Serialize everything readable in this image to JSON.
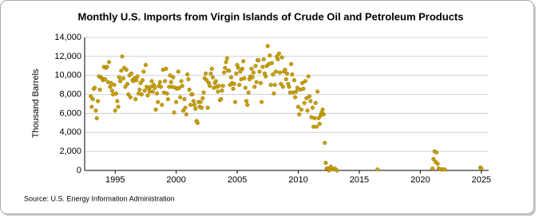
{
  "chart_data": {
    "type": "scatter",
    "title": "Monthly U.S. Imports from Virgin Islands of Crude Oil and Petroleum Products",
    "y_label": "Thousand Barrels",
    "source": "Source: U.S. Energy Information Administration",
    "color": "#c9a100",
    "grid": true,
    "xlim": [
      1992.5,
      2025.6
    ],
    "xticks": [
      1995,
      2000,
      2005,
      2010,
      2015,
      2020,
      2025
    ],
    "ylim": [
      0,
      14000
    ],
    "yticks": [
      0,
      {
        "value": 2000,
        "label": "2,000"
      },
      {
        "value": 4000,
        "label": "4,000"
      },
      {
        "value": 6000,
        "label": "6,000"
      },
      {
        "value": 8000,
        "label": "8,000"
      },
      {
        "value": 10000,
        "label": "10,000"
      },
      {
        "value": 12000,
        "label": "12,000"
      },
      {
        "value": 14000,
        "label": "14,000"
      }
    ],
    "x": [
      1993.0,
      1993.08,
      1993.17,
      1993.25,
      1993.33,
      1993.42,
      1993.5,
      1993.58,
      1993.67,
      1993.75,
      1993.83,
      1993.92,
      1994.0,
      1994.08,
      1994.17,
      1994.25,
      1994.33,
      1994.42,
      1994.5,
      1994.58,
      1994.67,
      1994.75,
      1994.83,
      1994.92,
      1995.0,
      1995.08,
      1995.17,
      1995.25,
      1995.33,
      1995.42,
      1995.5,
      1995.58,
      1995.67,
      1995.75,
      1995.83,
      1995.92,
      1996.0,
      1996.08,
      1996.17,
      1996.25,
      1996.33,
      1996.42,
      1996.5,
      1996.58,
      1996.67,
      1996.75,
      1996.83,
      1996.92,
      1997.0,
      1997.08,
      1997.17,
      1997.25,
      1997.33,
      1997.42,
      1997.5,
      1997.58,
      1997.67,
      1997.75,
      1997.83,
      1997.92,
      1998.0,
      1998.08,
      1998.17,
      1998.25,
      1998.33,
      1998.42,
      1998.5,
      1998.58,
      1998.67,
      1998.75,
      1998.83,
      1998.92,
      1999.0,
      1999.08,
      1999.17,
      1999.25,
      1999.33,
      1999.42,
      1999.5,
      1999.58,
      1999.67,
      1999.75,
      1999.83,
      1999.92,
      2000.0,
      2000.08,
      2000.17,
      2000.25,
      2000.33,
      2000.42,
      2000.5,
      2000.58,
      2000.67,
      2000.75,
      2000.83,
      2000.92,
      2001.0,
      2001.08,
      2001.17,
      2001.25,
      2001.33,
      2001.42,
      2001.5,
      2001.58,
      2001.67,
      2001.75,
      2001.83,
      2001.92,
      2002.0,
      2002.08,
      2002.17,
      2002.25,
      2002.33,
      2002.42,
      2002.5,
      2002.58,
      2002.67,
      2002.75,
      2002.83,
      2002.92,
      2003.0,
      2003.08,
      2003.17,
      2003.25,
      2003.33,
      2003.42,
      2003.5,
      2003.58,
      2003.67,
      2003.75,
      2003.83,
      2003.92,
      2004.0,
      2004.08,
      2004.17,
      2004.25,
      2004.33,
      2004.42,
      2004.5,
      2004.58,
      2004.67,
      2004.75,
      2004.83,
      2004.92,
      2005.0,
      2005.08,
      2005.17,
      2005.25,
      2005.33,
      2005.42,
      2005.5,
      2005.58,
      2005.67,
      2005.75,
      2005.83,
      2005.92,
      2006.0,
      2006.08,
      2006.17,
      2006.25,
      2006.33,
      2006.42,
      2006.5,
      2006.58,
      2006.67,
      2006.75,
      2006.83,
      2006.92,
      2007.0,
      2007.08,
      2007.17,
      2007.25,
      2007.33,
      2007.42,
      2007.5,
      2007.58,
      2007.67,
      2007.75,
      2007.83,
      2007.92,
      2008.0,
      2008.08,
      2008.17,
      2008.25,
      2008.33,
      2008.42,
      2008.5,
      2008.58,
      2008.67,
      2008.75,
      2008.83,
      2008.92,
      2009.0,
      2009.08,
      2009.17,
      2009.25,
      2009.33,
      2009.42,
      2009.5,
      2009.58,
      2009.67,
      2009.75,
      2009.83,
      2009.92,
      2010.0,
      2010.08,
      2010.17,
      2010.25,
      2010.33,
      2010.42,
      2010.5,
      2010.58,
      2010.67,
      2010.75,
      2010.83,
      2010.92,
      2011.0,
      2011.08,
      2011.17,
      2011.25,
      2011.33,
      2011.42,
      2011.5,
      2011.58,
      2011.67,
      2011.75,
      2011.83,
      2011.92,
      2012.0,
      2012.08,
      2012.17,
      2012.25,
      2012.33,
      2012.42,
      2012.5,
      2012.58,
      2012.67,
      2012.83,
      2013.0,
      2013.17,
      2016.5,
      2021.0,
      2021.08,
      2021.17,
      2021.25,
      2021.33,
      2021.42,
      2021.5,
      2021.67,
      2021.83,
      2022.0,
      2024.92,
      2025.0
    ],
    "values": [
      7800,
      6700,
      7500,
      8600,
      8700,
      6300,
      5500,
      7300,
      9900,
      8500,
      9800,
      9700,
      9500,
      10900,
      9600,
      10800,
      10900,
      9300,
      11400,
      8800,
      9200,
      8400,
      8000,
      9000,
      6300,
      8100,
      7300,
      6700,
      9800,
      9400,
      10500,
      12000,
      9700,
      10800,
      8800,
      10600,
      9100,
      8000,
      10000,
      7700,
      10200,
      9500,
      9400,
      9700,
      7500,
      9500,
      9900,
      8100,
      8500,
      9200,
      8000,
      9500,
      10400,
      8400,
      11100,
      8800,
      7900,
      8600,
      8300,
      8800,
      9400,
      8300,
      9000,
      8700,
      6400,
      8100,
      7200,
      8900,
      9300,
      8800,
      6900,
      10600,
      8200,
      9400,
      10700,
      8100,
      7500,
      8800,
      10000,
      9300,
      8800,
      9800,
      6100,
      8700,
      7200,
      8600,
      10400,
      8700,
      7700,
      9400,
      8900,
      6300,
      7500,
      6600,
      5900,
      10100,
      9600,
      8500,
      6900,
      8000,
      8000,
      7300,
      6900,
      6500,
      5200,
      5000,
      7200,
      6700,
      7200,
      6600,
      7600,
      8200,
      9700,
      10200,
      9500,
      6600,
      9200,
      8900,
      10200,
      10700,
      9800,
      8700,
      9200,
      9400,
      8800,
      8300,
      8900,
      7400,
      7500,
      8400,
      8900,
      10300,
      10800,
      11400,
      11800,
      10500,
      10500,
      9000,
      9800,
      9200,
      8600,
      9100,
      7200,
      10200,
      11100,
      10800,
      9000,
      10400,
      9600,
      10700,
      11500,
      9700,
      8700,
      7300,
      6900,
      8200,
      9600,
      9900,
      10700,
      9800,
      10300,
      8800,
      11000,
      9300,
      11600,
      11600,
      10400,
      9200,
      7200,
      10900,
      11700,
      10200,
      9900,
      11000,
      13100,
      11200,
      12100,
      9000,
      11300,
      10100,
      8100,
      9000,
      10400,
      12000,
      11700,
      12300,
      10300,
      9100,
      11900,
      8800,
      10400,
      10600,
      9600,
      10200,
      9100,
      8800,
      8200,
      11200,
      10100,
      8200,
      9500,
      7700,
      8300,
      8700,
      6700,
      5900,
      8500,
      6400,
      9200,
      8600,
      7100,
      9400,
      7600,
      6300,
      9900,
      7800,
      7300,
      5600,
      6600,
      4600,
      5500,
      7100,
      4600,
      8300,
      5500,
      4900,
      5800,
      6100,
      6400,
      5900,
      2900,
      800,
      200,
      200,
      0,
      100,
      400,
      100,
      200,
      0,
      100,
      200,
      1200,
      2000,
      900,
      1900,
      700,
      200,
      100,
      100,
      100,
      300,
      200
    ]
  }
}
